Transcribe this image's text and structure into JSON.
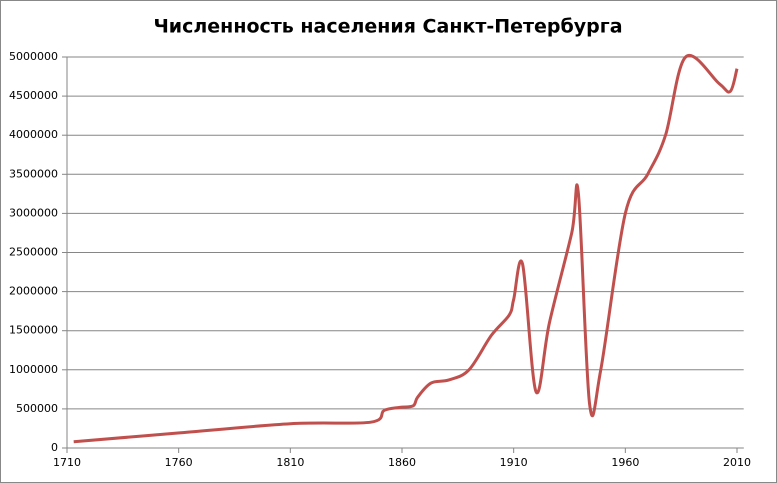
{
  "chart_data": {
    "type": "line",
    "title": "Численность населения Санкт-Петербурга",
    "x": [
      1713,
      1759,
      1810,
      1846,
      1852,
      1859,
      1865,
      1867,
      1873,
      1881,
      1890,
      1900,
      1908,
      1910,
      1914,
      1920,
      1926,
      1936,
      1939,
      1944,
      1949,
      1960,
      1970,
      1978,
      1987,
      2002,
      2007,
      2010
    ],
    "series": [
      {
        "color": "#c0504d",
        "values": [
          80000,
          190000,
          310000,
          330000,
          480000,
          520000,
          540000,
          650000,
          830000,
          870000,
          1000000,
          1440000,
          1700000,
          1900000,
          2350000,
          720000,
          1600000,
          2750000,
          3250000,
          560000,
          1000000,
          3000000,
          3500000,
          4000000,
          5000000,
          4660000,
          4560000,
          4850000
        ]
      }
    ],
    "xlim": [
      1710,
      2013
    ],
    "xticks": [
      1710,
      1760,
      1810,
      1860,
      1910,
      1960,
      2010
    ],
    "ylim": [
      0,
      5000000
    ],
    "yticks": [
      0,
      500000,
      1000000,
      1500000,
      2000000,
      2500000,
      3000000,
      3500000,
      4000000,
      4500000,
      5000000
    ],
    "grid": true
  }
}
